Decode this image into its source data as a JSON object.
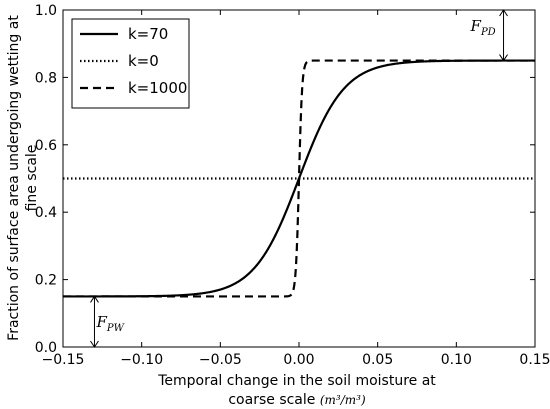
{
  "chart_data": {
    "type": "line",
    "xlabel_line1": "Temporal change in the soil moisture at",
    "xlabel_line2_text": "coarse scale ",
    "xlabel_unit": "(m³/m³)",
    "ylabel_line1": "Fraction of surface area undergoing wetting at",
    "ylabel_line2": "fine scale",
    "xlim": [
      -0.15,
      0.15
    ],
    "ylim": [
      0.0,
      1.0
    ],
    "xticks": [
      -0.15,
      -0.1,
      -0.05,
      0.0,
      0.05,
      0.1,
      0.15
    ],
    "xtick_labels": [
      "−0.15",
      "−0.10",
      "−0.05",
      "0.00",
      "0.05",
      "0.10",
      "0.15"
    ],
    "yticks": [
      0.0,
      0.2,
      0.4,
      0.6,
      0.8,
      1.0
    ],
    "ytick_labels": [
      "0.0",
      "0.2",
      "0.4",
      "0.6",
      "0.8",
      "1.0"
    ],
    "grid": false,
    "legend_position": "top-left",
    "series": [
      {
        "name": "k=70",
        "style": "solid",
        "color": "#000000",
        "k": 70,
        "ymin": 0.15,
        "ymax": 0.85
      },
      {
        "name": "k=0",
        "style": "dotted",
        "color": "#000000",
        "k": 0,
        "ymin": 0.15,
        "ymax": 0.85
      },
      {
        "name": "k=1000",
        "style": "dashed",
        "color": "#000000",
        "k": 1000,
        "ymin": 0.15,
        "ymax": 0.85
      }
    ],
    "annotations": [
      {
        "label": "F",
        "subscript": "PD",
        "x": 0.13,
        "y_from": 0.85,
        "y_to": 1.0
      },
      {
        "label": "F",
        "subscript": "PW",
        "x": -0.13,
        "y_from": 0.0,
        "y_to": 0.15
      }
    ]
  }
}
